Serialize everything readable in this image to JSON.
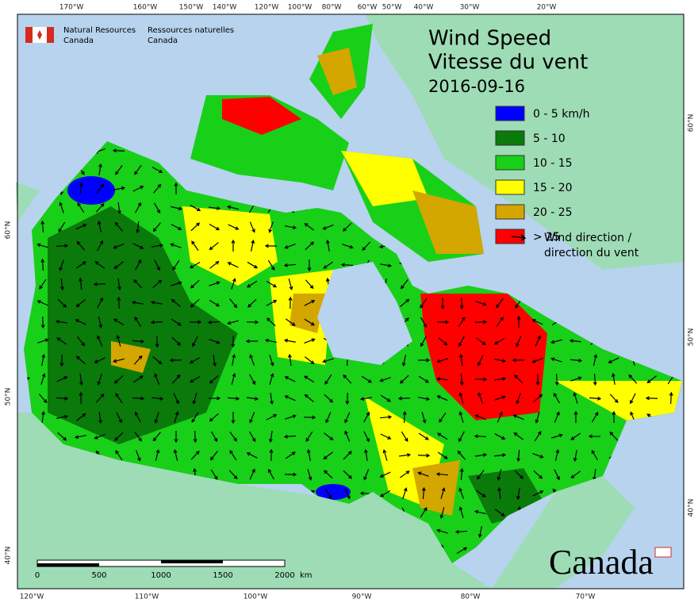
{
  "header": {
    "agency_en": [
      "Natural Resources",
      "Canada"
    ],
    "agency_fr": [
      "Ressources naturelles",
      "Canada"
    ]
  },
  "title": {
    "en": "Wind Speed",
    "fr": "Vitesse du vent",
    "date": "2016-09-16"
  },
  "legend": {
    "items": [
      {
        "label": "0 - 5 km/h",
        "color": "#0000ff"
      },
      {
        "label": "5 - 10",
        "color": "#0a7a0a"
      },
      {
        "label": "10 - 15",
        "color": "#18d018"
      },
      {
        "label": "15 - 20",
        "color": "#ffff00"
      },
      {
        "label": "20 - 25",
        "color": "#d4a600"
      },
      {
        "label": "> 25",
        "color": "#ff0000"
      }
    ],
    "arrow_label": [
      "Wind direction /",
      "direction du vent"
    ]
  },
  "graticule": {
    "top": [
      "170°W",
      "160°W",
      "150°W",
      "140°W",
      "120°W",
      "100°W",
      "80°W",
      "60°W",
      "50°W",
      "40°W",
      "30°W",
      "20°W"
    ],
    "bottom": [
      "120°W",
      "110°W",
      "100°W",
      "90°W",
      "80°W",
      "70°W"
    ],
    "left": [
      "60°N",
      "50°N",
      "40°N"
    ],
    "right": [
      "60°N",
      "50°N",
      "40°N"
    ]
  },
  "scale_bar": {
    "labels": [
      "0",
      "500",
      "1000",
      "1500",
      "2000"
    ],
    "unit": "km"
  },
  "wordmark": "Canada"
}
